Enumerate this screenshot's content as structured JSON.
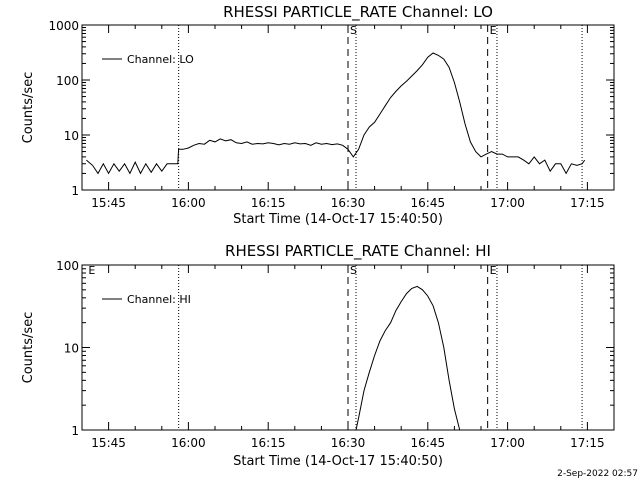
{
  "chart_data": [
    {
      "type": "line",
      "title": "RHESSI PARTICLE_RATE Channel: LO",
      "xlabel": "Start Time (14-Oct-17 15:40:50)",
      "ylabel": "Counts/sec",
      "xlim": [
        "15:40",
        "17:20"
      ],
      "ylim": [
        1,
        1000
      ],
      "y_scale": "log",
      "x_ticks": [
        "15:45",
        "16:00",
        "16:15",
        "16:30",
        "16:45",
        "17:00",
        "17:15"
      ],
      "y_ticks": [
        {
          "value": 1,
          "label": "1"
        },
        {
          "value": 10,
          "label": "10"
        },
        {
          "value": 100,
          "label": "100"
        },
        {
          "value": 1000,
          "label": "1000"
        }
      ],
      "legend": "Channel: LO",
      "legend_position": "top-left",
      "markers": [
        {
          "label": "S",
          "time": "16:30:00",
          "style": "dashed"
        },
        {
          "label": "E",
          "time": "16:56:15",
          "style": "dashed"
        }
      ],
      "dotted_lines": [
        "15:58:10",
        "16:31:30",
        "16:58:00",
        "17:14:00"
      ],
      "series": [
        {
          "name": "Channel: LO",
          "x": [
            "15:40:50",
            "15:42",
            "15:43",
            "15:44",
            "15:45",
            "15:46",
            "15:47",
            "15:48",
            "15:49",
            "15:50",
            "15:51",
            "15:52",
            "15:53",
            "15:54",
            "15:55",
            "15:56",
            "15:57",
            "15:58",
            "15:58:10",
            "15:59",
            "16:00",
            "16:01",
            "16:02",
            "16:03",
            "16:04",
            "16:05",
            "16:06",
            "16:07",
            "16:08",
            "16:09",
            "16:10",
            "16:11",
            "16:12",
            "16:13",
            "16:14",
            "16:15",
            "16:16",
            "16:17",
            "16:18",
            "16:19",
            "16:20",
            "16:21",
            "16:22",
            "16:23",
            "16:24",
            "16:25",
            "16:26",
            "16:27",
            "16:28",
            "16:29",
            "16:30",
            "16:31",
            "16:32",
            "16:33",
            "16:34",
            "16:35",
            "16:36",
            "16:37",
            "16:38",
            "16:39",
            "16:40",
            "16:41",
            "16:42",
            "16:43",
            "16:44",
            "16:45",
            "16:46",
            "16:47",
            "16:48",
            "16:49",
            "16:50",
            "16:51",
            "16:52",
            "16:53",
            "16:54",
            "16:55",
            "16:56",
            "16:57",
            "16:58",
            "16:59",
            "17:00",
            "17:01",
            "17:02",
            "17:03",
            "17:04",
            "17:05",
            "17:06",
            "17:07",
            "17:08",
            "17:09",
            "17:10",
            "17:11",
            "17:12",
            "17:13",
            "17:14",
            "17:14:30"
          ],
          "y": [
            3.5,
            2.8,
            2.0,
            3.0,
            2.0,
            3.0,
            2.2,
            3.0,
            2.0,
            3.2,
            2.0,
            3.0,
            2.1,
            3.0,
            2.2,
            3.0,
            3.0,
            3.0,
            5.5,
            5.5,
            5.8,
            6.5,
            7.0,
            6.8,
            8.0,
            7.5,
            8.5,
            7.8,
            8.2,
            7.2,
            7.0,
            7.5,
            6.8,
            7.0,
            6.9,
            7.2,
            7.0,
            6.6,
            7.0,
            6.8,
            7.2,
            6.9,
            7.0,
            6.5,
            7.2,
            6.8,
            7.0,
            6.7,
            6.9,
            6.5,
            5.5,
            4.0,
            5.5,
            10,
            14,
            17,
            24,
            34,
            48,
            62,
            78,
            95,
            118,
            148,
            190,
            260,
            310,
            280,
            240,
            170,
            90,
            40,
            16,
            7.5,
            5.0,
            4.0,
            4.5,
            5.0,
            4.5,
            4.5,
            4.0,
            4.0,
            4.0,
            3.5,
            3.0,
            4.0,
            3.0,
            3.5,
            2.2,
            3.0,
            3.0,
            2.0,
            3.0,
            2.8,
            3.0,
            3.5
          ]
        }
      ]
    },
    {
      "type": "line",
      "title": "RHESSI PARTICLE_RATE Channel: HI",
      "xlabel": "Start Time (14-Oct-17 15:40:50)",
      "ylabel": "Counts/sec",
      "xlim": [
        "15:40",
        "17:20"
      ],
      "ylim": [
        1,
        100
      ],
      "y_scale": "log",
      "x_ticks": [
        "15:45",
        "16:00",
        "16:15",
        "16:30",
        "16:45",
        "17:00",
        "17:15"
      ],
      "y_ticks": [
        {
          "value": 1,
          "label": "1"
        },
        {
          "value": 10,
          "label": "10"
        },
        {
          "value": 100,
          "label": "100"
        }
      ],
      "legend": "Channel: HI",
      "legend_position": "top-left",
      "markers": [
        {
          "label": "S",
          "time": "16:30:00",
          "style": "dashed"
        },
        {
          "label": "E",
          "time": "16:56:15",
          "style": "dashed"
        },
        {
          "label": "E",
          "time": "15:40:50",
          "style": "none"
        }
      ],
      "dotted_lines": [
        "15:58:10",
        "16:31:30",
        "16:58:00",
        "17:14:00"
      ],
      "series": [
        {
          "name": "Channel: HI",
          "x": [
            "16:31:30",
            "16:32",
            "16:33",
            "16:34",
            "16:35",
            "16:36",
            "16:37",
            "16:38",
            "16:39",
            "16:40",
            "16:41",
            "16:42",
            "16:43",
            "16:44",
            "16:45",
            "16:46",
            "16:47",
            "16:48",
            "16:49",
            "16:50",
            "16:51"
          ],
          "y": [
            1.0,
            1.4,
            3.0,
            5.0,
            8.0,
            12,
            16,
            20,
            28,
            36,
            45,
            52,
            55,
            50,
            42,
            32,
            20,
            10,
            4,
            1.8,
            1.0
          ]
        }
      ]
    }
  ],
  "stamp": "2-Sep-2022 02:57"
}
